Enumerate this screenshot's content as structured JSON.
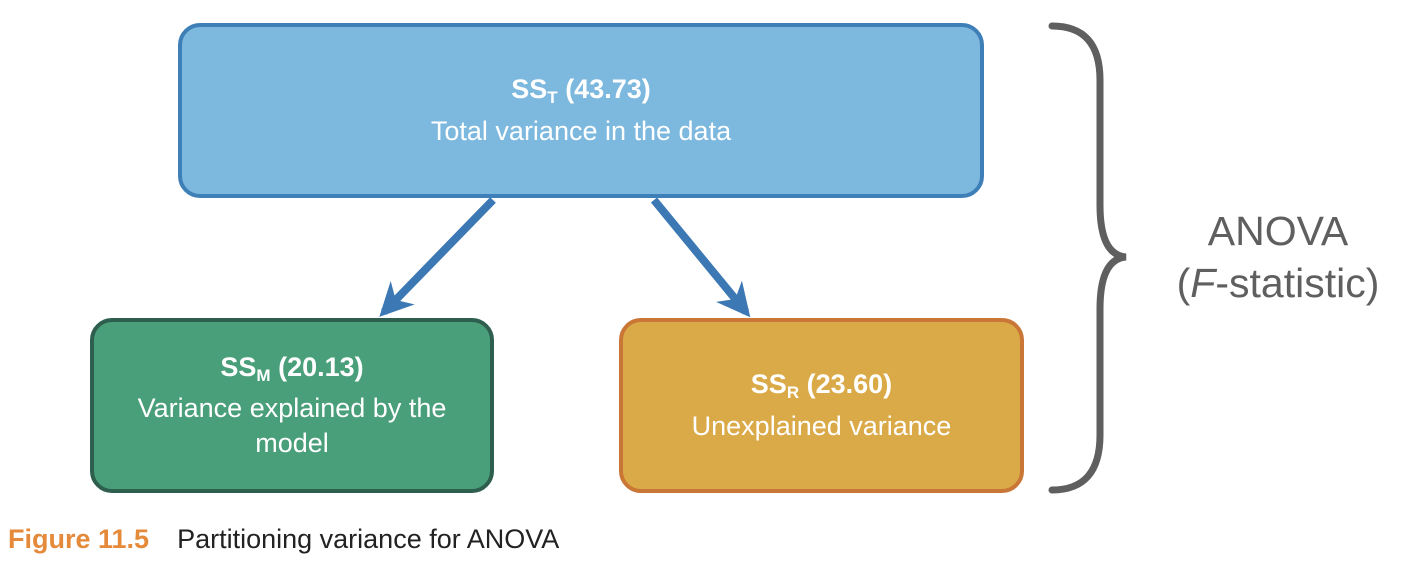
{
  "nodes": {
    "total": {
      "label": "SS",
      "subscript": "T",
      "value": "(43.73)",
      "description": "Total variance in the data",
      "fill": "#7db8de",
      "border": "#3f7fb8"
    },
    "model": {
      "label": "SS",
      "subscript": "M",
      "value": "(20.13)",
      "description": "Variance explained by the model",
      "fill": "#4a9f7b",
      "border": "#2d5e4e"
    },
    "residual": {
      "label": "SS",
      "subscript": "R",
      "value": "(23.60)",
      "description": "Unexplained variance",
      "fill": "#dbaa48",
      "border": "#c97636"
    }
  },
  "edges": [
    {
      "from": "total",
      "to": "model"
    },
    {
      "from": "total",
      "to": "residual"
    }
  ],
  "arrow_color": "#3b78b4",
  "brace_label": {
    "line1": "ANOVA",
    "stat_letter": "F",
    "stat_rest": "-statistic)",
    "open_paren": "("
  },
  "caption": {
    "number": "Figure 11.5",
    "text": "Partitioning variance for ANOVA",
    "number_color": "#e58a3a"
  }
}
